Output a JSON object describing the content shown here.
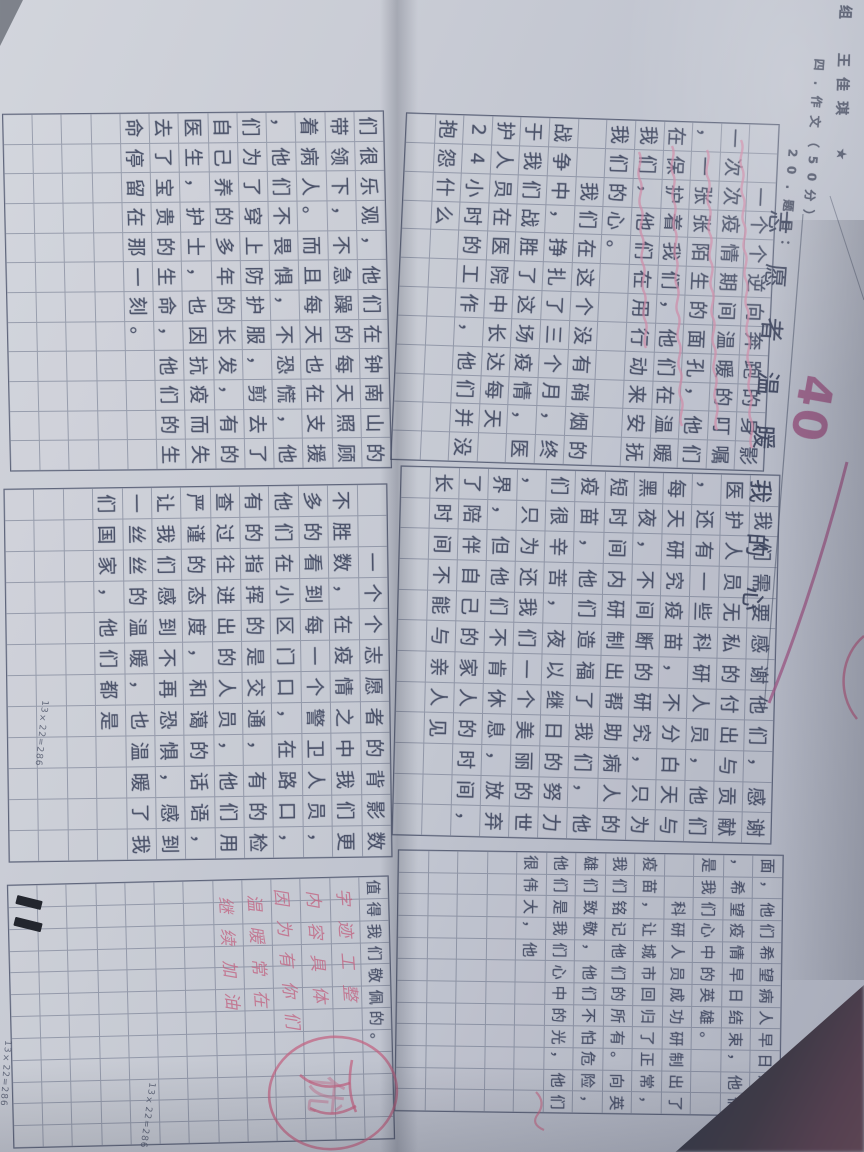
{
  "header": {
    "name_line": "组　王佳琪　★",
    "section_line": "四.作文（50分）",
    "question_label": "20.题目：",
    "essay_title": "志愿者温暖我的心",
    "score": "40"
  },
  "grid_note": "13×22=286",
  "pages": {
    "right": {
      "blocks": [
        {
          "id": "A",
          "lines": [
            "　　一个个逆向奔跑的身影，",
            "一次次疫情期间温暖的叮嘱",
            "，一张张陌生的面孔，他们",
            "在保护着我们，他们在温暖",
            "我们，他们在用行动来安抚",
            "我们的心。",
            "　　我们在这个没有硝烟的",
            "战争中，挣扎了三个月，终",
            "于我们战胜了这场疫情，医",
            "护人员在医院中长达每天",
            "24小时的工作，他们并没有",
            "抱怨什么",
            ""
          ]
        },
        {
          "id": "B",
          "lines": [
            "，我们需要感谢他们，感谢",
            "医护人员无私的付出与贡献",
            "，还有一些科研人员，他们",
            "每天研究疫苗，不分白天与",
            "黑夜，不间断的研究，只为",
            "短时间内研制出帮助病人的",
            "疫苗，他们造福了我们，他",
            "们很辛苦，夜以继日的努力",
            "，只为还我们一个美丽的世",
            "界，但他们不肯休息，放弃",
            "了陪伴自己的家人的时间，",
            "长时间不能与亲人见",
            ""
          ]
        },
        {
          "id": "E",
          "lines": [
            "面，他们希望病人早日康复",
            "，希望疫情早日结束，他们",
            "是我们心中的英雄。",
            "　　科研人员成功研制出了",
            "疫苗，让城市回归了正常，",
            "我们铭记他们的所有。向英",
            "雄们致敬，他们不怕危险，",
            "他们是我们心中的光，他们",
            "很伟大，他",
            "",
            "",
            "",
            ""
          ]
        }
      ]
    },
    "left": {
      "blocks": [
        {
          "id": "C",
          "lines": [
            "们很乐观，他们在钟南山的",
            "带领下，不急躁的每天照顾",
            "着病人。而且每天也在支援",
            "，他们不畏惧，不恐慌，他",
            "们为了穿上防护服，剪去了",
            "自己养的多年的长发，有的",
            "医生，护士，也因抗疫而失",
            "去了宝贵的生命，他们的生",
            "命停留在那一刻。",
            "",
            "",
            "",
            ""
          ]
        },
        {
          "id": "D",
          "lines": [
            "　　一个个志愿者的背影数",
            "不胜数，在疫情之中我们更",
            "多的看到每一个警卫人员，",
            "他们在小区门口，在路口，",
            "有的指挥的是交通，有的检",
            "查过往进出的人员，他们用",
            "严谨的态度，和蔼的话语，",
            "让我们感到不再恐惧，感到",
            "一丝丝的温暖，也温暖了我",
            "们国家，他们都是",
            "",
            "",
            ""
          ]
        },
        {
          "id": "F",
          "lines": [
            "值得我们敬佩的。",
            "",
            "",
            "",
            "",
            "",
            "",
            "",
            "",
            "",
            "",
            "",
            ""
          ]
        }
      ]
    }
  },
  "teacher_marks": {
    "comment_columns": [
      "字迹工整",
      "内容具体",
      "因为有你们",
      "温暖常在",
      "继续加油"
    ],
    "circle_label": "优",
    "score": "40"
  },
  "colors": {
    "paper": "#C5C9D3",
    "background": "#3C404B",
    "backdrop_corner": "#584351",
    "ink": "#39415A",
    "grid_line": "#4B546E",
    "red_pen": "#B05E80",
    "pink_wave": "#CF8AA6"
  }
}
